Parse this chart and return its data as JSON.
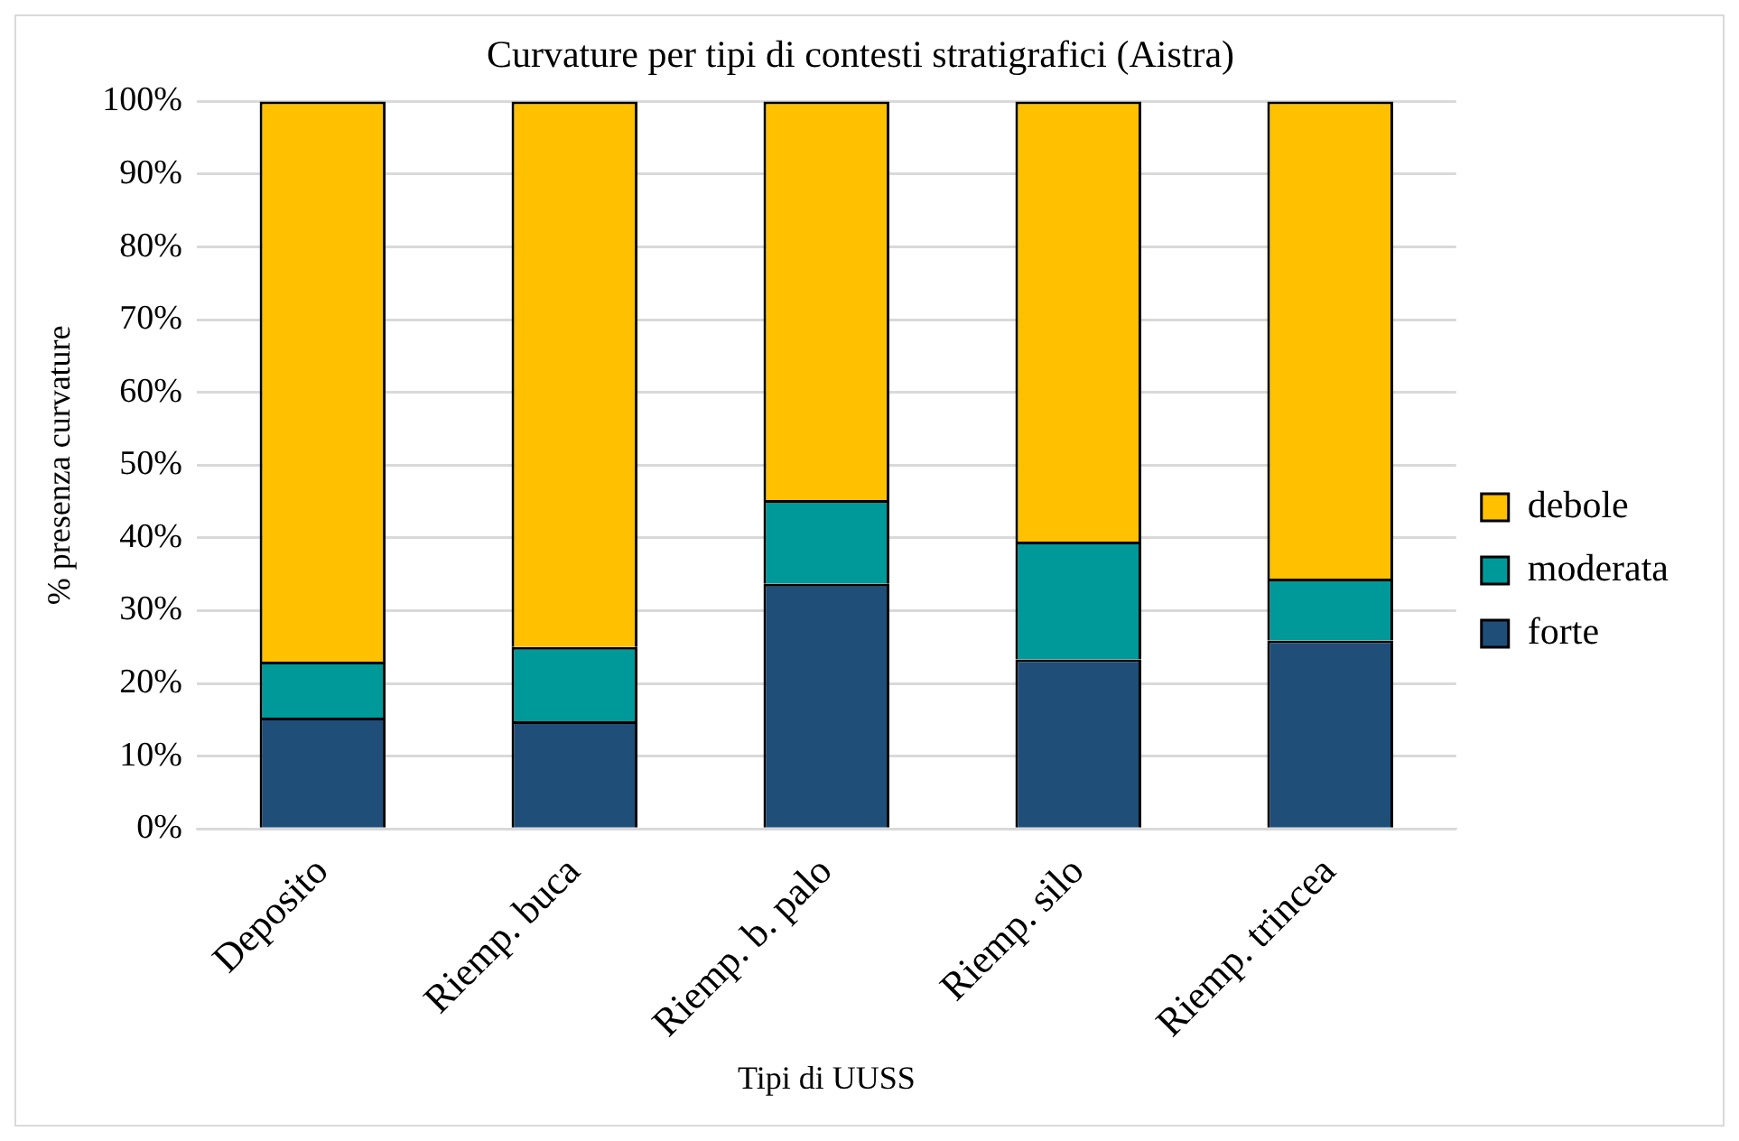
{
  "chart_data": {
    "type": "bar",
    "title": "Curvature per tipi di contesti stratigrafici (Aistra)",
    "xlabel": "Tipi di UUSS",
    "ylabel": "% presenza curvature",
    "categories": [
      "Deposito",
      "Riemp. buca",
      "Riemp. b. palo",
      "Riemp. silo",
      "Riemp. trincea"
    ],
    "series": [
      {
        "name": "forte",
        "color": "#1f4e79",
        "values": [
          15.3,
          14.8,
          33.7,
          23.3,
          25.9
        ]
      },
      {
        "name": "moderata",
        "color": "#009999",
        "values": [
          7.7,
          10.2,
          11.5,
          16.2,
          8.5
        ]
      },
      {
        "name": "debole",
        "color": "#ffc000",
        "values": [
          77,
          75,
          54.8,
          60.5,
          65.6
        ]
      }
    ],
    "stacked": true,
    "ylim": [
      0,
      100
    ],
    "yticks": [
      {
        "value": 0,
        "label": "0%"
      },
      {
        "value": 10,
        "label": "10%"
      },
      {
        "value": 20,
        "label": "20%"
      },
      {
        "value": 30,
        "label": "30%"
      },
      {
        "value": 40,
        "label": "40%"
      },
      {
        "value": 50,
        "label": "50%"
      },
      {
        "value": 60,
        "label": "60%"
      },
      {
        "value": 70,
        "label": "70%"
      },
      {
        "value": 80,
        "label": "80%"
      },
      {
        "value": 90,
        "label": "90%"
      },
      {
        "value": 100,
        "label": "100%"
      }
    ],
    "grid": "y",
    "legend": "right"
  }
}
